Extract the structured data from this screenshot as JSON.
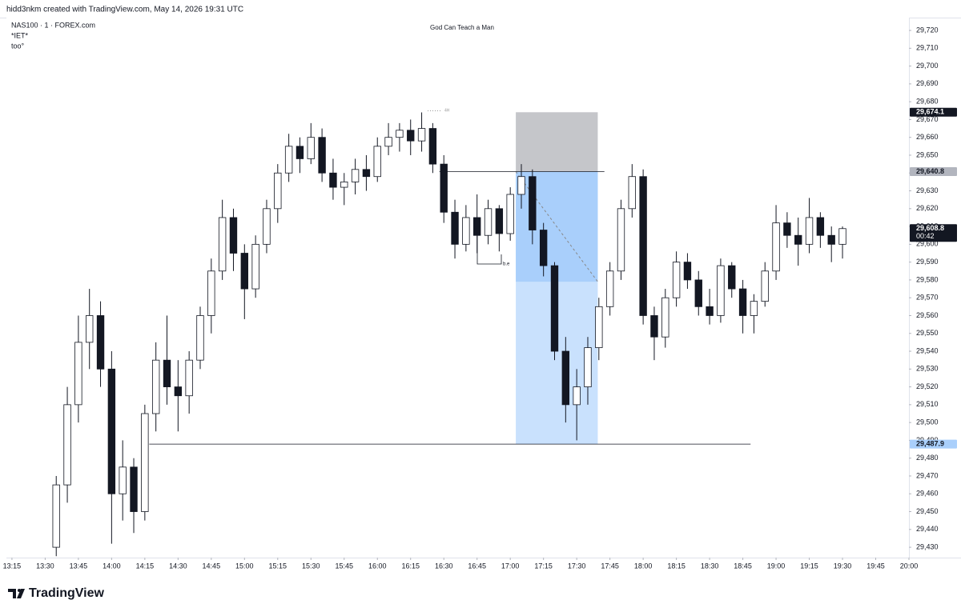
{
  "header": "hidd3nkm created with TradingView.com, May 14, 2026 19:31 UTC",
  "brand": "TradingView",
  "chart_data": {
    "type": "candlestick",
    "title": "God Can Teach a Man",
    "legend": [
      "NAS100 · 1 · FOREX.com",
      "*IET*",
      "too°"
    ],
    "xlim": [
      792.5,
      1200
    ],
    "ylim": [
      29424.2,
      29727.2
    ],
    "grid": false,
    "up_color": "#ffffff",
    "down_color": "#131722",
    "outline": "#131722",
    "x": [
      815,
      820,
      825,
      830,
      835,
      840,
      845,
      850,
      855,
      860,
      865,
      870,
      875,
      880,
      885,
      890,
      895,
      900,
      905,
      910,
      915,
      920,
      925,
      930,
      935,
      940,
      945,
      950,
      955,
      960,
      965,
      970,
      975,
      980,
      985,
      990,
      995,
      1000,
      1005,
      1010,
      1015,
      1020,
      1025,
      1030,
      1035,
      1040,
      1045,
      1050,
      1055,
      1060,
      1065,
      1070,
      1075,
      1080,
      1085,
      1090,
      1095,
      1100,
      1105,
      1110,
      1115,
      1120,
      1125,
      1130,
      1135,
      1140,
      1145,
      1150,
      1155,
      1160,
      1165,
      1170
    ],
    "open": [
      29430,
      29465,
      29510,
      29545,
      29560,
      29530,
      29460,
      29475,
      29450,
      29505,
      29535,
      29520,
      29515,
      29535,
      29560,
      29585,
      29615,
      29595,
      29575,
      29600,
      29620,
      29640,
      29655,
      29648,
      29660,
      29640,
      29632,
      29635,
      29642,
      29638,
      29655,
      29660,
      29664,
      29658,
      29665,
      29645,
      29618,
      29600,
      29615,
      29605,
      29620,
      29606,
      29628,
      29638,
      29608,
      29588,
      29540,
      29510,
      29520,
      29542,
      29565,
      29585,
      29620,
      29638,
      29560,
      29548,
      29570,
      29590,
      29580,
      29565,
      29560,
      29588,
      29575,
      29560,
      29568,
      29585,
      29612,
      29605,
      29600,
      29615,
      29605,
      29600
    ],
    "high": [
      29470,
      29520,
      29560,
      29575,
      29568,
      29540,
      29490,
      29480,
      29510,
      29545,
      29560,
      29535,
      29540,
      29565,
      29592,
      29625,
      29620,
      29600,
      29605,
      29625,
      29645,
      29662,
      29660,
      29668,
      29665,
      29648,
      29640,
      29648,
      29650,
      29660,
      29668,
      29668,
      29670,
      29674,
      29668,
      29650,
      29625,
      29622,
      29628,
      29625,
      29622,
      29632,
      29645,
      29642,
      29612,
      29590,
      29548,
      29530,
      29548,
      29570,
      29590,
      29625,
      29645,
      29642,
      29565,
      29575,
      29596,
      29595,
      29585,
      29575,
      29592,
      29590,
      29580,
      29572,
      29590,
      29622,
      29618,
      29615,
      29626,
      29618,
      29610,
      29610
    ],
    "low": [
      29425,
      29455,
      29500,
      29530,
      29520,
      29432,
      29445,
      29438,
      29445,
      29495,
      29510,
      29495,
      29505,
      29530,
      29550,
      29580,
      29585,
      29558,
      29570,
      29595,
      29612,
      29635,
      29640,
      29645,
      29635,
      29625,
      29622,
      29628,
      29630,
      29635,
      29650,
      29652,
      29650,
      29652,
      29640,
      29612,
      29592,
      29596,
      29595,
      29600,
      29596,
      29602,
      29620,
      29600,
      29582,
      29535,
      29500,
      29490,
      29510,
      29535,
      29560,
      29580,
      29615,
      29555,
      29535,
      29542,
      29565,
      29575,
      29560,
      29555,
      29556,
      29570,
      29550,
      29550,
      29565,
      29580,
      29598,
      29588,
      29595,
      29598,
      29590,
      29592
    ],
    "close": [
      29465,
      29510,
      29545,
      29560,
      29530,
      29460,
      29475,
      29450,
      29505,
      29535,
      29520,
      29515,
      29535,
      29560,
      29585,
      29615,
      29595,
      29575,
      29600,
      29620,
      29640,
      29655,
      29648,
      29660,
      29640,
      29632,
      29635,
      29642,
      29638,
      29655,
      29660,
      29664,
      29658,
      29665,
      29645,
      29618,
      29600,
      29615,
      29605,
      29620,
      29606,
      29628,
      29638,
      29608,
      29588,
      29540,
      29510,
      29520,
      29542,
      29565,
      29585,
      29620,
      29638,
      29560,
      29548,
      29570,
      29590,
      29580,
      29565,
      29560,
      29588,
      29575,
      29560,
      29568,
      29585,
      29612,
      29605,
      29600,
      29615,
      29605,
      29600,
      29608.8
    ],
    "yticks": [
      {
        "value": 29430,
        "label": "29,430"
      },
      {
        "value": 29440,
        "label": "29,440"
      },
      {
        "value": 29450,
        "label": "29,450"
      },
      {
        "value": 29460,
        "label": "29,460"
      },
      {
        "value": 29470,
        "label": "29,470"
      },
      {
        "value": 29480,
        "label": "29,480"
      },
      {
        "value": 29490,
        "label": "29,490"
      },
      {
        "value": 29500,
        "label": "29,500"
      },
      {
        "value": 29510,
        "label": "29,510"
      },
      {
        "value": 29520,
        "label": "29,520"
      },
      {
        "value": 29530,
        "label": "29,530"
      },
      {
        "value": 29540,
        "label": "29,540"
      },
      {
        "value": 29550,
        "label": "29,550"
      },
      {
        "value": 29560,
        "label": "29,560"
      },
      {
        "value": 29570,
        "label": "29,570"
      },
      {
        "value": 29580,
        "label": "29,580"
      },
      {
        "value": 29590,
        "label": "29,590"
      },
      {
        "value": 29600,
        "label": "29,600"
      },
      {
        "value": 29610,
        "label": "29,610"
      },
      {
        "value": 29620,
        "label": "29,620"
      },
      {
        "value": 29630,
        "label": "29,630"
      },
      {
        "value": 29640,
        "label": "29,640"
      },
      {
        "value": 29650,
        "label": "29,650"
      },
      {
        "value": 29660,
        "label": "29,660"
      },
      {
        "value": 29670,
        "label": "29,670"
      },
      {
        "value": 29680,
        "label": "29,680"
      },
      {
        "value": 29690,
        "label": "29,690"
      },
      {
        "value": 29700,
        "label": "29,700"
      },
      {
        "value": 29710,
        "label": "29,710"
      },
      {
        "value": 29720,
        "label": "29,720"
      }
    ],
    "xticks": [
      {
        "value": 795,
        "label": "13:15"
      },
      {
        "value": 810,
        "label": "13:30"
      },
      {
        "value": 825,
        "label": "13:45"
      },
      {
        "value": 840,
        "label": "14:00"
      },
      {
        "value": 855,
        "label": "14:15"
      },
      {
        "value": 870,
        "label": "14:30"
      },
      {
        "value": 885,
        "label": "14:45"
      },
      {
        "value": 900,
        "label": "15:00"
      },
      {
        "value": 915,
        "label": "15:15"
      },
      {
        "value": 930,
        "label": "15:30"
      },
      {
        "value": 945,
        "label": "15:45"
      },
      {
        "value": 960,
        "label": "16:00"
      },
      {
        "value": 975,
        "label": "16:15"
      },
      {
        "value": 990,
        "label": "16:30"
      },
      {
        "value": 1005,
        "label": "16:45"
      },
      {
        "value": 1020,
        "label": "17:00"
      },
      {
        "value": 1035,
        "label": "17:15"
      },
      {
        "value": 1050,
        "label": "17:30"
      },
      {
        "value": 1065,
        "label": "17:45"
      },
      {
        "value": 1080,
        "label": "18:00"
      },
      {
        "value": 1095,
        "label": "18:15"
      },
      {
        "value": 1110,
        "label": "18:30"
      },
      {
        "value": 1125,
        "label": "18:45"
      },
      {
        "value": 1140,
        "label": "19:00"
      },
      {
        "value": 1155,
        "label": "19:15"
      },
      {
        "value": 1170,
        "label": "19:30"
      },
      {
        "value": 1185,
        "label": "19:45"
      },
      {
        "value": 1200,
        "label": "20:00"
      }
    ],
    "position": {
      "x": [
        1022.5,
        1059.5
      ],
      "stop": 29674.1,
      "entry": 29640.8,
      "target": 29487.9,
      "progress_price": 29579,
      "stop_color": "#c5c6ca",
      "profit_color": "#a9cffb",
      "target_color": "#c9e1fd"
    },
    "levels": [
      {
        "price": 29640.8,
        "x": [
          988,
          1062.5
        ]
      },
      {
        "price": 29487.9,
        "x": [
          857,
          1128.5
        ]
      }
    ],
    "annotations": [
      "b.e",
      "4H"
    ],
    "price_labels": [
      {
        "value": 29674.1,
        "label": "29,674.1",
        "bg": "#131722",
        "fg": "#ffffff"
      },
      {
        "value": 29640.8,
        "label": "29,640.8",
        "bg": "#b2b5be",
        "fg": "#131722"
      },
      {
        "value": 29608.8,
        "label": "29,608.8",
        "bg": "#131722",
        "fg": "#ffffff",
        "sub": "00:42"
      },
      {
        "value": 29487.9,
        "label": "29,487.9",
        "bg": "#a9cffb",
        "fg": "#131722"
      }
    ]
  }
}
